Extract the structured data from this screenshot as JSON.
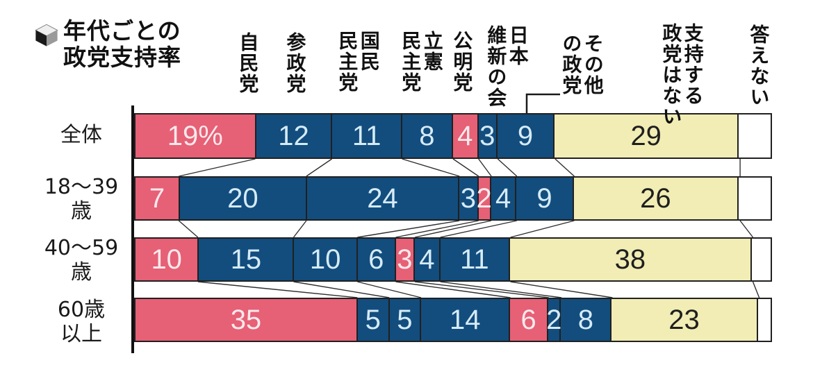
{
  "page": {
    "background": "#ffffff"
  },
  "title": {
    "text": "年代ごとの政党支持率",
    "display": "年代ごとの\n政党支持率",
    "icon": "cube-bullet-icon"
  },
  "colors": {
    "ldp_komei_red": "#e66076",
    "opposition_blue": "#124d7e",
    "no_party_yellow": "#f1edb4",
    "no_answer_white": "#ffffff",
    "border_black": "#202020",
    "axis_black": "#111111",
    "connector_gray": "#2f2f2f"
  },
  "chart_data": {
    "type": "bar",
    "orientation": "horizontal-stacked",
    "unit": "%",
    "title": "年代ごとの政党支持率",
    "categories": [
      "全体",
      "18〜39歳",
      "40〜59歳",
      "60歳以上"
    ],
    "category_display": [
      "全体",
      "18〜39\n歳",
      "40〜59\n歳",
      "60歳\n以上"
    ],
    "xlim": [
      0,
      100
    ],
    "grid": false,
    "legend_position": "column-headers-above-first-bar",
    "series": [
      {
        "name": "自民党",
        "display": "自民党",
        "color": "#e66076",
        "text_color": "#fbe9ec",
        "values": [
          19,
          7,
          10,
          35
        ],
        "value_labels": [
          "19%",
          "7",
          "10",
          "35"
        ],
        "values_shown_on_chart": true
      },
      {
        "name": "参政党",
        "display": "参政党",
        "color": "#124d7e",
        "text_color": "#d6ebf7",
        "values": [
          12,
          20,
          15,
          5
        ],
        "values_shown_on_chart": true
      },
      {
        "name": "国民民主党",
        "display": "国民\n民主党",
        "color": "#124d7e",
        "text_color": "#d6ebf7",
        "values": [
          11,
          24,
          10,
          5
        ],
        "values_shown_on_chart": true
      },
      {
        "name": "立憲民主党",
        "display": "立憲\n民主党",
        "color": "#124d7e",
        "text_color": "#d6ebf7",
        "values": [
          8,
          3,
          6,
          14
        ],
        "values_shown_on_chart": true
      },
      {
        "name": "公明党",
        "display": "公明党",
        "color": "#e66076",
        "text_color": "#fbe9ec",
        "values": [
          4,
          2,
          3,
          6
        ],
        "values_shown_on_chart": true
      },
      {
        "name": "日本維新の会",
        "display": "日本\n維新の会",
        "color": "#124d7e",
        "text_color": "#d6ebf7",
        "values": [
          3,
          4,
          4,
          2
        ],
        "values_shown_on_chart": true
      },
      {
        "name": "その他の政党",
        "display": "その他\nの政党",
        "color": "#124d7e",
        "text_color": "#d6ebf7",
        "values": [
          9,
          9,
          11,
          8
        ],
        "values_shown_on_chart": true,
        "leader_line": true
      },
      {
        "name": "支持する政党はない",
        "display": "支持する\n政党はない",
        "color": "#f1edb4",
        "text_color": "#1f1f1f",
        "values": [
          29,
          26,
          38,
          23
        ],
        "values_shown_on_chart": true
      },
      {
        "name": "答えない",
        "display": "答えない",
        "color": "#ffffff",
        "text_color": "#1f1f1f",
        "values": [
          5,
          5,
          3,
          2
        ],
        "values_shown_on_chart": false,
        "estimated": true
      }
    ]
  }
}
